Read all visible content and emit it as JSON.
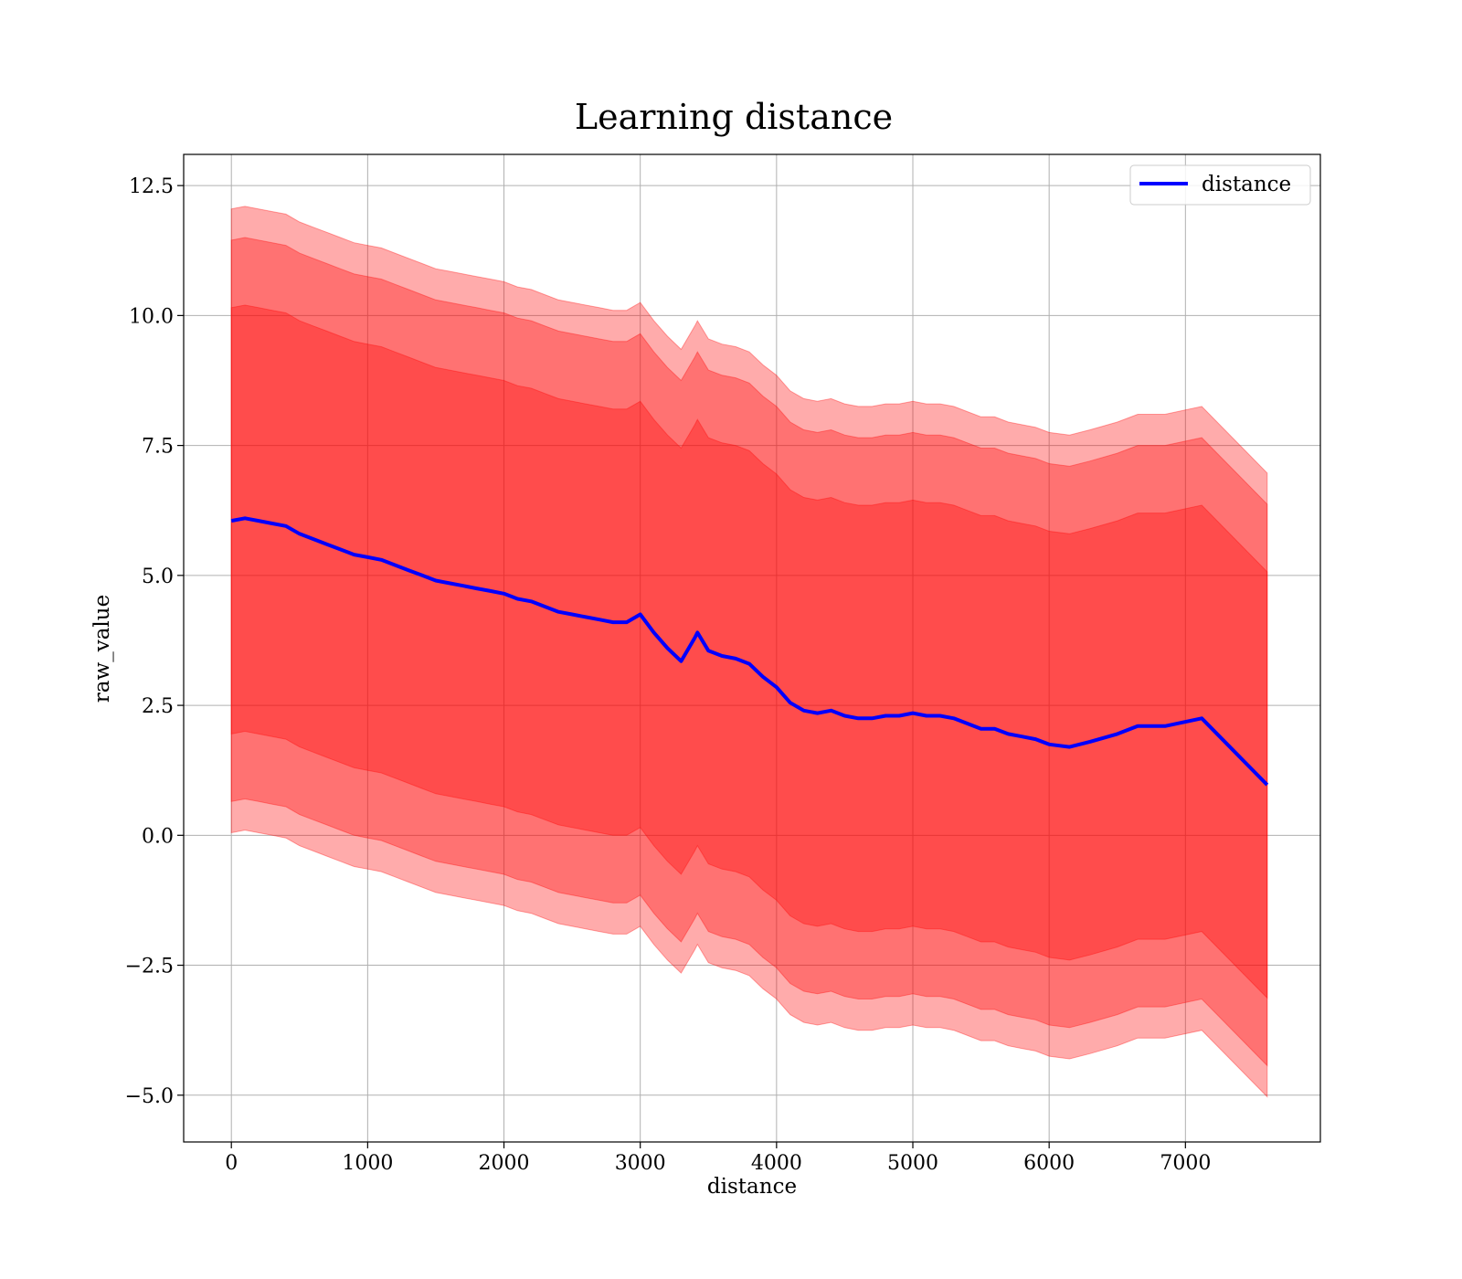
{
  "chart_data": {
    "type": "line",
    "title": "Learning distance",
    "xlabel": "distance",
    "ylabel": "raw_value",
    "xlim": [
      -350,
      7990
    ],
    "ylim": [
      -5.9,
      13.1
    ],
    "x_ticks": [
      0,
      1000,
      2000,
      3000,
      4000,
      5000,
      6000,
      7000
    ],
    "x_tick_labels": [
      "0",
      "1000",
      "2000",
      "3000",
      "4000",
      "5000",
      "6000",
      "7000"
    ],
    "y_ticks": [
      12.5,
      10.0,
      7.5,
      5.0,
      2.5,
      0.0,
      -2.5,
      -5.0
    ],
    "y_tick_labels": [
      "12.5",
      "10.0",
      "7.5",
      "5.0",
      "2.5",
      "0.0",
      "−2.5",
      "−5.0"
    ],
    "grid": true,
    "legend": {
      "position": "top-right",
      "entries": [
        "distance"
      ]
    },
    "colors": {
      "line": "#0000ff",
      "band": "#ff0000",
      "band_opacity": 0.33
    },
    "band_halfwidths": [
      4.1,
      5.4,
      6.0
    ],
    "series": [
      {
        "name": "distance",
        "x": [
          0,
          100,
          200,
          300,
          400,
          500,
          600,
          700,
          800,
          900,
          1000,
          1100,
          1200,
          1300,
          1400,
          1500,
          1600,
          1700,
          1800,
          1900,
          2000,
          2100,
          2200,
          2300,
          2400,
          2500,
          2600,
          2700,
          2800,
          2900,
          3000,
          3100,
          3200,
          3300,
          3400,
          3420,
          3500,
          3600,
          3700,
          3800,
          3900,
          4000,
          4100,
          4200,
          4300,
          4400,
          4500,
          4600,
          4700,
          4800,
          4900,
          5000,
          5100,
          5200,
          5300,
          5400,
          5500,
          5600,
          5700,
          5800,
          5900,
          6000,
          6150,
          6300,
          6500,
          6650,
          6850,
          7120,
          7600
        ],
        "y": [
          6.05,
          6.1,
          6.05,
          6.0,
          5.95,
          5.8,
          5.7,
          5.6,
          5.5,
          5.4,
          5.35,
          5.3,
          5.2,
          5.1,
          5.0,
          4.9,
          4.85,
          4.8,
          4.75,
          4.7,
          4.65,
          4.55,
          4.5,
          4.4,
          4.3,
          4.25,
          4.2,
          4.15,
          4.1,
          4.1,
          4.25,
          3.9,
          3.6,
          3.35,
          3.8,
          3.9,
          3.55,
          3.45,
          3.4,
          3.3,
          3.05,
          2.85,
          2.55,
          2.4,
          2.35,
          2.4,
          2.3,
          2.25,
          2.25,
          2.3,
          2.3,
          2.35,
          2.3,
          2.3,
          2.25,
          2.15,
          2.05,
          2.05,
          1.95,
          1.9,
          1.85,
          1.75,
          1.7,
          1.8,
          1.95,
          2.1,
          2.1,
          2.25,
          0.97
        ]
      }
    ]
  }
}
